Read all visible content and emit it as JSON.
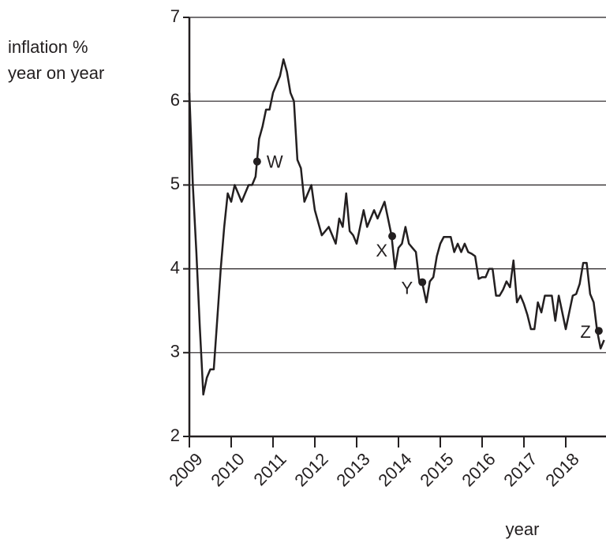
{
  "chart_data": {
    "type": "line",
    "ylabel": [
      "inflation %",
      "year on year"
    ],
    "xlabel": "year",
    "color": "#231f20",
    "grid": true,
    "xlim": [
      2009,
      2018.95
    ],
    "ylim": [
      2,
      7
    ],
    "yticks": [
      2,
      3,
      4,
      5,
      6,
      7
    ],
    "xticks": [
      2009,
      2010,
      2011,
      2012,
      2013,
      2014,
      2015,
      2016,
      2017,
      2018
    ],
    "x": [
      2009,
      2009.083,
      2009.167,
      2009.25,
      2009.333,
      2009.417,
      2009.5,
      2009.583,
      2009.667,
      2009.75,
      2009.833,
      2009.917,
      2010,
      2010.083,
      2010.167,
      2010.25,
      2010.333,
      2010.417,
      2010.5,
      2010.583,
      2010.667,
      2010.75,
      2010.833,
      2010.917,
      2011,
      2011.083,
      2011.167,
      2011.25,
      2011.333,
      2011.417,
      2011.5,
      2011.583,
      2011.667,
      2011.75,
      2011.833,
      2011.917,
      2012,
      2012.083,
      2012.167,
      2012.25,
      2012.333,
      2012.417,
      2012.5,
      2012.583,
      2012.667,
      2012.75,
      2012.833,
      2012.917,
      2013,
      2013.083,
      2013.167,
      2013.25,
      2013.333,
      2013.417,
      2013.5,
      2013.583,
      2013.667,
      2013.75,
      2013.833,
      2013.917,
      2014,
      2014.083,
      2014.167,
      2014.25,
      2014.333,
      2014.417,
      2014.5,
      2014.583,
      2014.667,
      2014.75,
      2014.833,
      2014.917,
      2015,
      2015.083,
      2015.167,
      2015.25,
      2015.333,
      2015.417,
      2015.5,
      2015.583,
      2015.667,
      2015.75,
      2015.833,
      2015.917,
      2016,
      2016.083,
      2016.167,
      2016.25,
      2016.333,
      2016.417,
      2016.5,
      2016.583,
      2016.667,
      2016.75,
      2016.833,
      2016.917,
      2017,
      2017.083,
      2017.167,
      2017.25,
      2017.333,
      2017.417,
      2017.5,
      2017.583,
      2017.667,
      2017.75,
      2017.833,
      2017.917,
      2018,
      2018.083,
      2018.167,
      2018.25,
      2018.333,
      2018.417,
      2018.5,
      2018.583,
      2018.667,
      2018.75,
      2018.833,
      2018.917
    ],
    "values": [
      6.1,
      5.0,
      4.2,
      3.3,
      2.5,
      2.7,
      2.8,
      2.8,
      3.4,
      4.0,
      4.5,
      4.9,
      4.8,
      5.0,
      4.9,
      4.8,
      4.9,
      5.0,
      5.0,
      5.1,
      5.55,
      5.7,
      5.9,
      5.9,
      6.1,
      6.2,
      6.3,
      6.5,
      6.35,
      6.1,
      6.0,
      5.3,
      5.2,
      4.8,
      4.9,
      5.0,
      4.7,
      4.55,
      4.4,
      4.45,
      4.5,
      4.4,
      4.3,
      4.6,
      4.5,
      4.9,
      4.45,
      4.4,
      4.3,
      4.5,
      4.7,
      4.5,
      4.6,
      4.7,
      4.6,
      4.7,
      4.8,
      4.6,
      4.4,
      4.0,
      4.25,
      4.3,
      4.5,
      4.3,
      4.25,
      4.2,
      3.84,
      3.8,
      3.6,
      3.85,
      3.9,
      4.15,
      4.3,
      4.38,
      4.38,
      4.38,
      4.2,
      4.3,
      4.2,
      4.3,
      4.2,
      4.18,
      4.15,
      3.88,
      3.9,
      3.9,
      4.0,
      4.0,
      3.68,
      3.68,
      3.75,
      3.85,
      3.78,
      4.1,
      3.6,
      3.68,
      3.58,
      3.45,
      3.28,
      3.28,
      3.6,
      3.48,
      3.68,
      3.68,
      3.68,
      3.38,
      3.68,
      3.48,
      3.28,
      3.48,
      3.68,
      3.7,
      3.82,
      4.07,
      4.07,
      3.7,
      3.6,
      3.26,
      3.05,
      3.15
    ],
    "annotations": [
      {
        "text": "W",
        "x": 2010.62,
        "y": 5.28
      },
      {
        "text": "X",
        "x": 2013.85,
        "y": 4.39
      },
      {
        "text": "Y",
        "x": 2014.57,
        "y": 3.84
      },
      {
        "text": "Z",
        "x": 2018.79,
        "y": 3.26
      }
    ]
  }
}
